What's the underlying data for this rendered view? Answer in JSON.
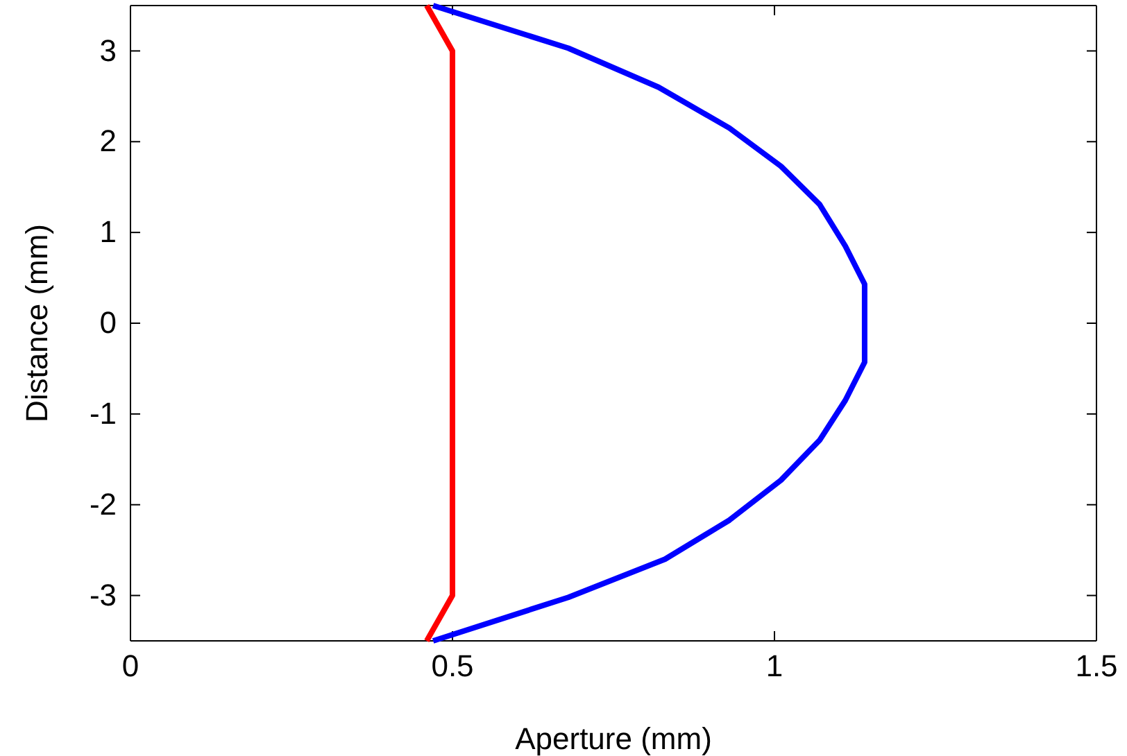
{
  "chart_data": {
    "type": "line",
    "xlabel": "Aperture (mm)",
    "ylabel": "Distance (mm)",
    "xlim": [
      0,
      1.5
    ],
    "ylim": [
      -3.5,
      3.5
    ],
    "xticks": [
      0,
      0.5,
      1,
      1.5
    ],
    "yticks": [
      -3,
      -2,
      -1,
      0,
      1,
      2,
      3
    ],
    "grid": false,
    "marker": "none",
    "line_style": "solid",
    "series": [
      {
        "color": "#ff0000",
        "x": [
          0.46,
          0.5,
          0.5,
          0.46
        ],
        "values": [
          3.5,
          3.0,
          -3.0,
          -3.5
        ]
      },
      {
        "color": "#0000ff",
        "x": [
          0.47,
          0.68,
          0.82,
          0.93,
          1.01,
          1.07,
          1.11,
          1.14,
          1.14,
          1.11,
          1.07,
          1.01,
          0.93,
          0.83,
          0.68,
          0.47
        ],
        "values": [
          3.5,
          3.03,
          2.6,
          2.15,
          1.73,
          1.31,
          0.85,
          0.43,
          -0.43,
          -0.85,
          -1.29,
          -1.73,
          -2.17,
          -2.6,
          -3.02,
          -3.5
        ]
      }
    ]
  }
}
